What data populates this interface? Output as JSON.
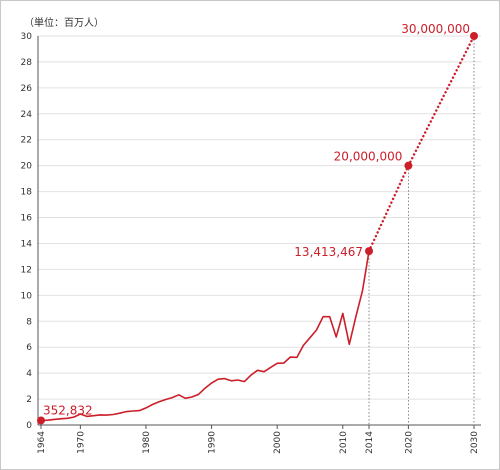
{
  "chart_data": {
    "type": "line",
    "unit_label": "（単位：百万人）",
    "ylim": [
      0,
      30
    ],
    "y_ticks": [
      0,
      2,
      4,
      6,
      8,
      10,
      12,
      14,
      16,
      18,
      20,
      22,
      24,
      26,
      28,
      30
    ],
    "x_range": [
      1964,
      2030
    ],
    "x_ticks": [
      "1964",
      "1970",
      "1980",
      "1990",
      "2000",
      "2010",
      "2014",
      "2020",
      "2030"
    ],
    "grid": "horizontal",
    "color": "#cc1f2a",
    "series": [
      {
        "style": "solid",
        "x": [
          1964,
          1965,
          1966,
          1967,
          1968,
          1969,
          1970,
          1971,
          1972,
          1973,
          1974,
          1975,
          1976,
          1977,
          1978,
          1979,
          1980,
          1981,
          1982,
          1983,
          1984,
          1985,
          1986,
          1987,
          1988,
          1989,
          1990,
          1991,
          1992,
          1993,
          1994,
          1995,
          1996,
          1997,
          1998,
          1999,
          2000,
          2001,
          2002,
          2003,
          2004,
          2005,
          2006,
          2007,
          2008,
          2009,
          2010,
          2011,
          2012,
          2013,
          2014
        ],
        "y": [
          0.35,
          0.37,
          0.43,
          0.48,
          0.52,
          0.61,
          0.85,
          0.66,
          0.72,
          0.78,
          0.76,
          0.81,
          0.91,
          1.03,
          1.08,
          1.11,
          1.32,
          1.58,
          1.79,
          1.97,
          2.11,
          2.33,
          2.06,
          2.16,
          2.36,
          2.84,
          3.24,
          3.53,
          3.58,
          3.41,
          3.47,
          3.35,
          3.84,
          4.22,
          4.11,
          4.44,
          4.76,
          4.77,
          5.24,
          5.21,
          6.14,
          6.73,
          7.33,
          8.35,
          8.35,
          6.79,
          8.61,
          6.22,
          8.36,
          10.36,
          13.41
        ]
      },
      {
        "style": "dotted",
        "x": [
          2014,
          2020,
          2030
        ],
        "y": [
          13.41,
          20,
          30
        ]
      }
    ],
    "labeled_points": [
      {
        "x": 1964,
        "y": 0.35,
        "label": "352,832"
      },
      {
        "x": 2014,
        "y": 13.41,
        "label": "13,413,467"
      },
      {
        "x": 2020,
        "y": 20,
        "label": "20,000,000"
      },
      {
        "x": 2030,
        "y": 30,
        "label": "30,000,000"
      }
    ]
  }
}
